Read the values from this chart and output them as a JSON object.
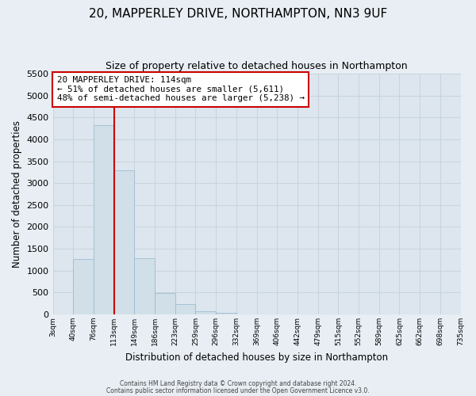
{
  "title": "20, MAPPERLEY DRIVE, NORTHAMPTON, NN3 9UF",
  "subtitle": "Size of property relative to detached houses in Northampton",
  "xlabel": "Distribution of detached houses by size in Northampton",
  "ylabel": "Number of detached properties",
  "footer_line1": "Contains HM Land Registry data © Crown copyright and database right 2024.",
  "footer_line2": "Contains public sector information licensed under the Open Government Licence v3.0.",
  "bin_labels": [
    "3sqm",
    "40sqm",
    "76sqm",
    "113sqm",
    "149sqm",
    "186sqm",
    "223sqm",
    "259sqm",
    "296sqm",
    "332sqm",
    "369sqm",
    "406sqm",
    "442sqm",
    "479sqm",
    "515sqm",
    "552sqm",
    "589sqm",
    "625sqm",
    "662sqm",
    "698sqm",
    "735sqm"
  ],
  "bar_values": [
    0,
    1270,
    4330,
    3290,
    1290,
    480,
    230,
    80,
    40,
    0,
    0,
    0,
    0,
    0,
    0,
    0,
    0,
    0,
    0,
    0
  ],
  "bar_color": "#d0dfe8",
  "bar_edgecolor": "#a0bcd0",
  "vline_x_label": "113sqm",
  "vline_color": "#cc0000",
  "ylim": [
    0,
    5500
  ],
  "yticks": [
    0,
    500,
    1000,
    1500,
    2000,
    2500,
    3000,
    3500,
    4000,
    4500,
    5000,
    5500
  ],
  "annotation_title": "20 MAPPERLEY DRIVE: 114sqm",
  "annotation_line1": "← 51% of detached houses are smaller (5,611)",
  "annotation_line2": "48% of semi-detached houses are larger (5,238) →",
  "annotation_box_color": "#ffffff",
  "annotation_box_edgecolor": "#cc0000",
  "bg_color": "#e8eef4",
  "plot_bg_color": "#dde6ef",
  "grid_color": "#c8d4dc"
}
